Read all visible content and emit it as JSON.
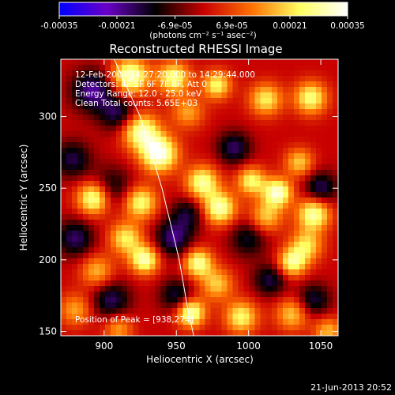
{
  "chart_data": {
    "type": "heatmap",
    "title": "Reconstructed RHESSI Image",
    "xlabel": "Heliocentric X (arcsec)",
    "ylabel": "Heliocentric Y (arcsec)",
    "xlim": [
      870,
      1062
    ],
    "ylim": [
      147,
      340
    ],
    "x_ticks": [
      900,
      950,
      1000,
      1050
    ],
    "y_ticks": [
      150,
      200,
      250,
      300
    ],
    "colorbar": {
      "vmin": -0.00035,
      "vmax": 0.00035,
      "tick_values": [
        -0.00035,
        -0.00021,
        -6.9e-05,
        6.9e-05,
        0.00021,
        0.00035
      ],
      "tick_labels": [
        "-0.00035",
        "-0.00021",
        "-6.9e-05",
        "6.9e-05",
        "0.00021",
        "0.00035"
      ],
      "units_label": "(photons cm⁻² s⁻¹ asec⁻²)",
      "colors": [
        "#0000ff",
        "#6a00c8",
        "#000000",
        "#c80000",
        "#ff7000",
        "#ffff60",
        "#ffffff"
      ]
    },
    "info_lines": [
      "12-Feb-2004 14:27:20.000 to 14:29:44.000",
      "Detectors: 4F 5F 6F 7F 8F, Att 0",
      "Energy Range: 12.0 - 25.0 keV",
      "Clean     Total counts: 5.65E+03"
    ],
    "peak_label": "Position of Peak = [938,274]",
    "peak_position": [
      938,
      274
    ],
    "limb_curve": {
      "x": [
        907,
        925,
        940,
        952,
        958,
        962
      ],
      "y": [
        340,
        300,
        250,
        200,
        165,
        147
      ]
    },
    "blobs": [
      {
        "x": 918,
        "y": 328,
        "a": 0.9,
        "s": 9
      },
      {
        "x": 948,
        "y": 327,
        "a": 0.75,
        "s": 8
      },
      {
        "x": 978,
        "y": 322,
        "a": 0.7,
        "s": 7
      },
      {
        "x": 1012,
        "y": 312,
        "a": 0.65,
        "s": 8
      },
      {
        "x": 1043,
        "y": 313,
        "a": 0.75,
        "s": 8
      },
      {
        "x": 892,
        "y": 318,
        "a": -0.6,
        "s": 10
      },
      {
        "x": 910,
        "y": 302,
        "a": -0.5,
        "s": 9
      },
      {
        "x": 958,
        "y": 303,
        "a": 0.45,
        "s": 8
      },
      {
        "x": 925,
        "y": 290,
        "a": 0.85,
        "s": 9
      },
      {
        "x": 938,
        "y": 274,
        "a": 1.0,
        "s": 9
      },
      {
        "x": 990,
        "y": 278,
        "a": -0.5,
        "s": 8
      },
      {
        "x": 1035,
        "y": 268,
        "a": 0.55,
        "s": 7
      },
      {
        "x": 878,
        "y": 270,
        "a": -0.45,
        "s": 9
      },
      {
        "x": 905,
        "y": 250,
        "a": -0.4,
        "s": 10
      },
      {
        "x": 968,
        "y": 254,
        "a": 0.8,
        "s": 8
      },
      {
        "x": 1002,
        "y": 255,
        "a": 0.7,
        "s": 7
      },
      {
        "x": 1020,
        "y": 247,
        "a": 0.9,
        "s": 7
      },
      {
        "x": 1050,
        "y": 250,
        "a": -0.5,
        "s": 8
      },
      {
        "x": 893,
        "y": 243,
        "a": 0.9,
        "s": 8
      },
      {
        "x": 925,
        "y": 240,
        "a": 0.75,
        "s": 8
      },
      {
        "x": 958,
        "y": 232,
        "a": -0.4,
        "s": 8
      },
      {
        "x": 980,
        "y": 236,
        "a": 0.85,
        "s": 8
      },
      {
        "x": 1012,
        "y": 230,
        "a": 0.55,
        "s": 8
      },
      {
        "x": 1045,
        "y": 232,
        "a": 0.85,
        "s": 8
      },
      {
        "x": 880,
        "y": 215,
        "a": -0.5,
        "s": 9
      },
      {
        "x": 915,
        "y": 215,
        "a": 0.65,
        "s": 8
      },
      {
        "x": 948,
        "y": 215,
        "a": -0.55,
        "s": 9
      },
      {
        "x": 1000,
        "y": 215,
        "a": -0.4,
        "s": 9
      },
      {
        "x": 1040,
        "y": 210,
        "a": 0.6,
        "s": 8
      },
      {
        "x": 928,
        "y": 200,
        "a": 0.85,
        "s": 7
      },
      {
        "x": 965,
        "y": 198,
        "a": 0.8,
        "s": 7
      },
      {
        "x": 1030,
        "y": 198,
        "a": 0.75,
        "s": 7
      },
      {
        "x": 895,
        "y": 192,
        "a": 0.5,
        "s": 8
      },
      {
        "x": 978,
        "y": 183,
        "a": 0.55,
        "s": 8
      },
      {
        "x": 1015,
        "y": 186,
        "a": -0.45,
        "s": 8
      },
      {
        "x": 905,
        "y": 172,
        "a": -0.5,
        "s": 9
      },
      {
        "x": 950,
        "y": 175,
        "a": -0.45,
        "s": 8
      },
      {
        "x": 1045,
        "y": 172,
        "a": -0.45,
        "s": 8
      },
      {
        "x": 880,
        "y": 165,
        "a": 0.45,
        "s": 8
      },
      {
        "x": 960,
        "y": 163,
        "a": 0.9,
        "s": 7
      },
      {
        "x": 995,
        "y": 160,
        "a": 0.7,
        "s": 8
      },
      {
        "x": 1030,
        "y": 162,
        "a": 0.55,
        "s": 8
      },
      {
        "x": 910,
        "y": 152,
        "a": 0.45,
        "s": 7
      },
      {
        "x": 1055,
        "y": 150,
        "a": 0.5,
        "s": 7
      }
    ]
  },
  "footer": {
    "timestamp": "21-Jun-2013 20:52"
  }
}
